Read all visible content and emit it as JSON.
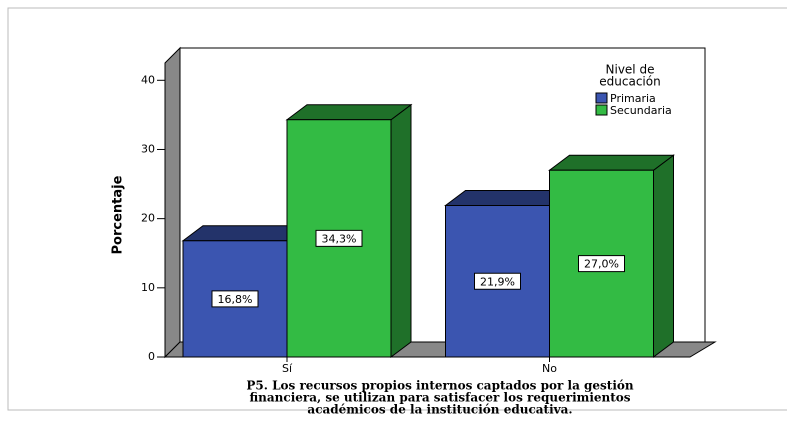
{
  "chart_data": {
    "type": "bar3d",
    "ylabel": "Porcentaje",
    "xlabel": [
      "P5. Los recursos propios internos captados por la gestión",
      "financiera, se utilizan para satisfacer los requerimientos",
      "académicos de la institución educativa."
    ],
    "categories": [
      "Sí",
      "No"
    ],
    "series": [
      {
        "name": "Primaria",
        "color": "#3b55b0",
        "values": [
          16.8,
          21.9
        ],
        "value_labels": [
          "16,8%",
          "21,9%"
        ]
      },
      {
        "name": "Secundaria",
        "color": "#33bb44",
        "values": [
          34.3,
          27.0
        ],
        "value_labels": [
          "34,3%",
          "27,0%"
        ]
      }
    ],
    "legend_title": [
      "Nivel de",
      "educación"
    ],
    "legend": "top-right",
    "ylim": [
      0,
      42.5
    ],
    "yticks": [
      0,
      10,
      20,
      30,
      40
    ],
    "grid": false
  }
}
